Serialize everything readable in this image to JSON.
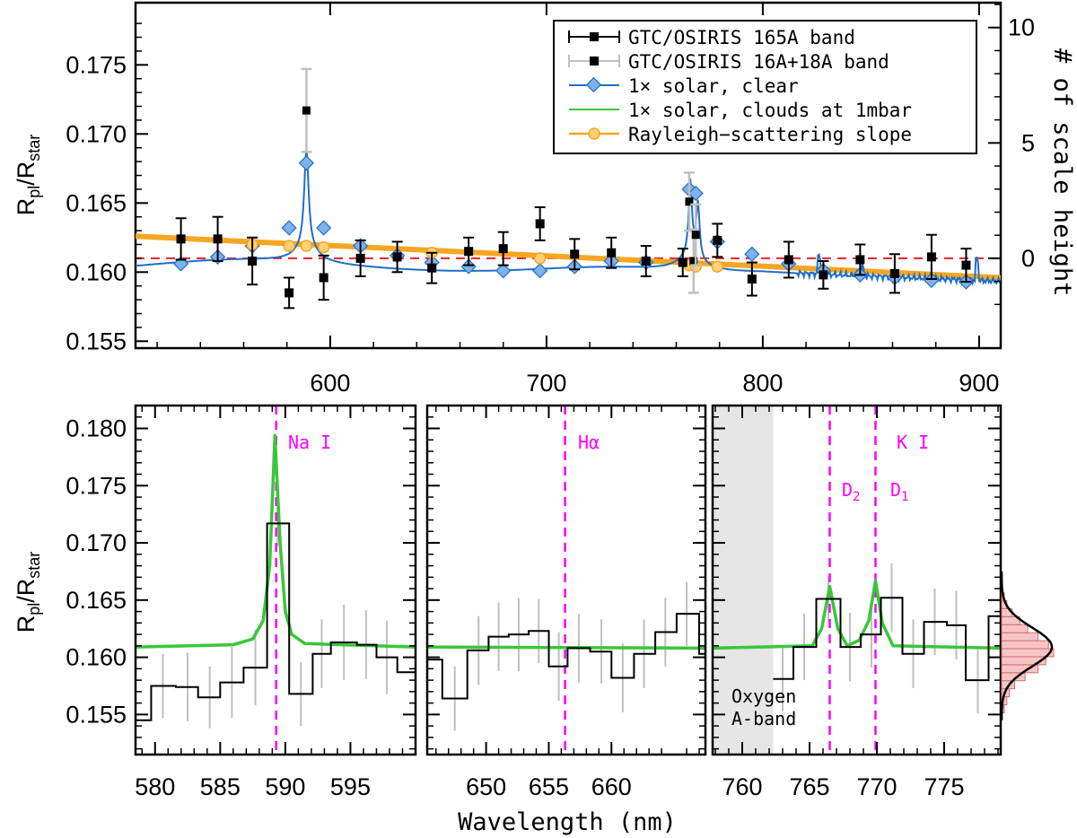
{
  "colors": {
    "black": "#000000",
    "gray_err": "#bfbfbf",
    "blue": "#1f6fc5",
    "blue_marker": "#7fb2ea",
    "green": "#3ac63a",
    "orange": "#f5a623",
    "orange_marker": "#ffd27a",
    "red_dashed": "#e8222a",
    "magenta": "#ff00ff",
    "shade": "#e6e6e6",
    "hist_fill": "#f6c6c6",
    "hist_edge": "#d86a6a"
  },
  "labels": {
    "ylabel_main": "R",
    "ylabel_sub_pl": "pl",
    "ylabel_slash": "/R",
    "ylabel_sub_star": "star",
    "right_ylabel": "# of scale height",
    "xlabel": "Wavelength (nm)",
    "na": "Na I",
    "halpha": "Hα",
    "ki": "K I",
    "d2": "D",
    "d2_sub": "2",
    "d1": "D",
    "d1_sub": "1",
    "oxygen_line1": "Oxygen",
    "oxygen_line2": "A-band"
  },
  "legend": {
    "entries": [
      {
        "label": "GTC/OSIRIS 165A band",
        "style": "black-square-errorbar"
      },
      {
        "label": "GTC/OSIRIS 16A+18A band",
        "style": "gray-errorbar-black-square"
      },
      {
        "label": "1× solar, clear",
        "style": "blue-line-diamond"
      },
      {
        "label": "1× solar, clouds at 1mbar",
        "style": "green-line"
      },
      {
        "label": "Rayleigh−scattering slope",
        "style": "orange-line-circle"
      }
    ]
  },
  "chart_data": [
    {
      "type": "scatter",
      "panel": "top",
      "xlim": [
        510,
        910
      ],
      "ylim": [
        0.1545,
        0.1795
      ],
      "xticks": [
        600,
        700,
        800,
        900
      ],
      "yticks": [
        0.155,
        0.16,
        0.165,
        0.17,
        0.175
      ],
      "ytick_labels": [
        "0.155",
        "0.160",
        "0.165",
        "0.170",
        "0.175"
      ],
      "right_axis": {
        "label": "# of scale height",
        "ticks": [
          0,
          5,
          10
        ],
        "zero_at": 0.161,
        "per_unit": 0.00167
      },
      "reference_line_y": 0.161,
      "broadband_165A": {
        "x": [
          531,
          548,
          564,
          581,
          597,
          614,
          631,
          647,
          664,
          680,
          697,
          713,
          730,
          746,
          763,
          779,
          795,
          812,
          828,
          845,
          861,
          878,
          894
        ],
        "y": [
          0.1624,
          0.1624,
          0.1608,
          0.1585,
          0.1596,
          0.161,
          0.1611,
          0.1603,
          0.1615,
          0.1617,
          0.1635,
          0.1613,
          0.1614,
          0.1608,
          0.1607,
          0.1623,
          0.1595,
          0.1609,
          0.1598,
          0.1609,
          0.1599,
          0.1611,
          0.1605
        ],
        "err": [
          0.0015,
          0.0016,
          0.0017,
          0.0011,
          0.0016,
          0.0013,
          0.0011,
          0.0011,
          0.001,
          0.0012,
          0.0012,
          0.0011,
          0.0011,
          0.0011,
          0.001,
          0.0012,
          0.0012,
          0.0013,
          0.001,
          0.0011,
          0.0014,
          0.0016,
          0.0012
        ]
      },
      "narrowband_16A_18A": {
        "x": [
          589,
          766,
          768,
          769
        ],
        "y": [
          0.1717,
          0.1651,
          0.1608,
          0.1627
        ],
        "err": [
          0.003,
          0.0021,
          0.0023,
          0.0022
        ]
      },
      "model_clear_markers": {
        "x": [
          531,
          548,
          564,
          581,
          589,
          597,
          614,
          631,
          647,
          664,
          680,
          697,
          713,
          730,
          746,
          766,
          769,
          779,
          795,
          812,
          828,
          845,
          861,
          878,
          894
        ],
        "y": [
          0.1606,
          0.1611,
          0.1619,
          0.1632,
          0.1679,
          0.1632,
          0.1619,
          0.1612,
          0.1607,
          0.1604,
          0.1601,
          0.1601,
          0.1604,
          0.1608,
          0.1607,
          0.166,
          0.1657,
          0.1622,
          0.1613,
          0.1606,
          0.1601,
          0.1598,
          0.1596,
          0.1594,
          0.1593
        ]
      },
      "rayleigh_slope": {
        "x": [
          510,
          910
        ],
        "y": [
          0.1626,
          0.1596
        ]
      },
      "rayleigh_markers": {
        "x": [
          564,
          581,
          589,
          597,
          647,
          697,
          766,
          769,
          779
        ],
        "y": [
          0.162,
          0.1619,
          0.1619,
          0.1618,
          0.1614,
          0.161,
          0.1605,
          0.1604,
          0.1604
        ]
      }
    },
    {
      "type": "line",
      "panel": "bottom-left",
      "xlim": [
        578.5,
        600.0
      ],
      "ylim": [
        0.1515,
        0.182
      ],
      "xticks": [
        580,
        585,
        590,
        595
      ],
      "yticks": [
        0.155,
        0.16,
        0.165,
        0.17,
        0.175,
        0.18
      ],
      "ytick_labels": [
        "0.155",
        "0.160",
        "0.165",
        "0.170",
        "0.175",
        "0.180"
      ],
      "line_position": 589.3,
      "annotation": "Na I",
      "step_edges": [
        578.5,
        579.7,
        581.6,
        583.3,
        585.0,
        586.8,
        588.6,
        590.3,
        592.1,
        593.5,
        595.5,
        597.0,
        598.6,
        600.0
      ],
      "step_values": [
        0.1545,
        0.1575,
        0.1574,
        0.1565,
        0.1578,
        0.1591,
        0.1717,
        0.1568,
        0.1603,
        0.1613,
        0.1611,
        0.16,
        0.1587
      ],
      "err_x": [
        580.6,
        582.5,
        584.2,
        585.9,
        587.7,
        589.4,
        591.2,
        592.8,
        594.5,
        596.2,
        597.8
      ],
      "err_y": [
        0.1575,
        0.1574,
        0.1565,
        0.1578,
        0.1591,
        0.1717,
        0.1568,
        0.1603,
        0.1613,
        0.1611,
        0.16
      ],
      "err": [
        0.0028,
        0.003,
        0.0027,
        0.0031,
        0.0033,
        0.002,
        0.0028,
        0.003,
        0.0033,
        0.003,
        0.0032
      ],
      "model_x": [
        578.5,
        586.0,
        587.5,
        588.3,
        588.8,
        589.2,
        589.6,
        590.0,
        590.5,
        591.5,
        600.0
      ],
      "model_y": [
        0.1609,
        0.1611,
        0.1616,
        0.1632,
        0.168,
        0.1794,
        0.17,
        0.164,
        0.162,
        0.1612,
        0.1609
      ]
    },
    {
      "type": "line",
      "panel": "bottom-middle",
      "xlim": [
        645.3,
        667.5
      ],
      "ylim": [
        0.1515,
        0.182
      ],
      "xticks": [
        650,
        655,
        660
      ],
      "line_position": 656.3,
      "annotation": "Hα",
      "step_edges": [
        645.3,
        646.5,
        648.5,
        650.2,
        651.8,
        653.4,
        655.0,
        656.5,
        658.3,
        660.0,
        661.8,
        663.5,
        665.2,
        667.0,
        667.5
      ],
      "step_values": [
        0.1598,
        0.1564,
        0.1606,
        0.1618,
        0.162,
        0.1623,
        0.1592,
        0.1608,
        0.1605,
        0.1582,
        0.1603,
        0.1622,
        0.1638,
        0.1603
      ],
      "err_x": [
        647.5,
        649.4,
        651.0,
        652.6,
        654.2,
        655.8,
        657.4,
        659.2,
        660.9,
        662.6,
        664.3,
        666.0
      ],
      "err_y": [
        0.1564,
        0.1606,
        0.1618,
        0.162,
        0.1623,
        0.1592,
        0.1608,
        0.1605,
        0.1582,
        0.1603,
        0.1622,
        0.1638
      ],
      "err": [
        0.0028,
        0.003,
        0.003,
        0.0032,
        0.0028,
        0.003,
        0.003,
        0.0028,
        0.003,
        0.003,
        0.003,
        0.0028
      ],
      "model_x": [
        645.3,
        667.5
      ],
      "model_y": [
        0.1609,
        0.1608
      ]
    },
    {
      "type": "line",
      "panel": "bottom-right",
      "xlim": [
        757.8,
        779.2
      ],
      "ylim": [
        0.1515,
        0.182
      ],
      "xticks": [
        760,
        765,
        770,
        775
      ],
      "line_positions": [
        766.5,
        769.9
      ],
      "shaded_band": [
        757.8,
        762.3
      ],
      "annotations": [
        "Oxygen A-band",
        "K I",
        "D2",
        "D1"
      ],
      "step_edges": [
        762.3,
        763.8,
        765.5,
        767.3,
        768.8,
        770.3,
        771.9,
        773.5,
        775.2,
        776.6,
        778.3,
        779.2
      ],
      "step_values": [
        0.1581,
        0.1609,
        0.1651,
        0.1609,
        0.162,
        0.1652,
        0.1603,
        0.1631,
        0.1628,
        0.158,
        0.1636
      ],
      "err_x": [
        763.0,
        764.6,
        766.4,
        768.0,
        769.6,
        771.1,
        772.7,
        774.3,
        775.9,
        777.5
      ],
      "err_y": [
        0.1581,
        0.1609,
        0.1651,
        0.1609,
        0.162,
        0.1652,
        0.1603,
        0.1631,
        0.1628,
        0.158
      ],
      "err": [
        0.0028,
        0.0029,
        0.002,
        0.003,
        0.0029,
        0.003,
        0.003,
        0.0029,
        0.003,
        0.0029
      ],
      "model_x": [
        757.8,
        765.2,
        765.9,
        766.5,
        767.1,
        767.8,
        768.7,
        769.4,
        769.9,
        770.4,
        771.2,
        779.2
      ],
      "model_y": [
        0.1608,
        0.161,
        0.1625,
        0.1662,
        0.1625,
        0.161,
        0.1615,
        0.1632,
        0.1667,
        0.163,
        0.161,
        0.1608
      ]
    },
    {
      "type": "bar",
      "panel": "side-histogram",
      "orientation": "horizontal",
      "ylim": [
        0.1515,
        0.182
      ],
      "bins_y": [
        0.1555,
        0.1562,
        0.1569,
        0.1576,
        0.1583,
        0.159,
        0.1597,
        0.1604,
        0.1611,
        0.1618,
        0.1625,
        0.1632,
        0.1639,
        0.1646,
        0.1653
      ],
      "counts": [
        1,
        2,
        3,
        5,
        9,
        14,
        17,
        20,
        18,
        14,
        10,
        7,
        4,
        2,
        1
      ],
      "gaussian_mean": 0.1609,
      "gaussian_sigma": 0.0017
    }
  ]
}
